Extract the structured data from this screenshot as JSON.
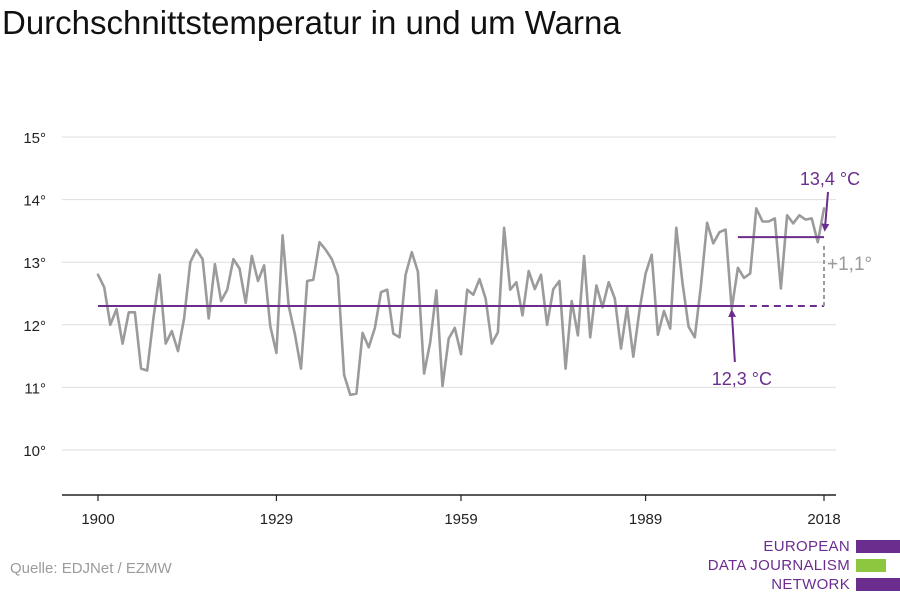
{
  "title": "Durchschnittstemperatur in und um Warna",
  "source": "Quelle: EDJNet / EZMW",
  "logo": {
    "lines": [
      "EUROPEAN",
      "DATA JOURNALISM",
      "NETWORK"
    ],
    "colors": [
      "#6b2d8e",
      "#8dc63f",
      "#6b2d8e"
    ]
  },
  "chart_data": {
    "type": "line",
    "title": "Durchschnittstemperatur in und um Warna",
    "xlabel": "",
    "ylabel": "",
    "xlim": [
      1900,
      2018
    ],
    "ylim": [
      9.3,
      15.3
    ],
    "x_ticks": [
      1900,
      1929,
      1959,
      1989,
      2018
    ],
    "x_tick_labels": [
      "1900",
      "1929",
      "1959",
      "1989",
      "2018"
    ],
    "y_ticks": [
      10,
      11,
      12,
      13,
      14,
      15
    ],
    "y_tick_labels": [
      "10°",
      "11°",
      "12°",
      "13°",
      "14°",
      "15°"
    ],
    "grid": "horizontal",
    "colors": {
      "series": "#9b9b9b",
      "reference": "#6b2d8e",
      "delta": "#9b9b9b"
    },
    "series": [
      {
        "x": [
          1900,
          1901,
          1902,
          1903,
          1904,
          1905,
          1906,
          1907,
          1908,
          1909,
          1910,
          1911,
          1912,
          1913,
          1914,
          1915,
          1916,
          1917,
          1918,
          1919,
          1920,
          1921,
          1922,
          1923,
          1924,
          1925,
          1926,
          1927,
          1928,
          1929,
          1930,
          1931,
          1932,
          1933,
          1934,
          1935,
          1936,
          1937,
          1938,
          1939,
          1940,
          1941,
          1942,
          1943,
          1944,
          1945,
          1946,
          1947,
          1948,
          1949,
          1950,
          1951,
          1952,
          1953,
          1954,
          1955,
          1956,
          1957,
          1958,
          1959,
          1960,
          1961,
          1962,
          1963,
          1964,
          1965,
          1966,
          1967,
          1968,
          1969,
          1970,
          1971,
          1972,
          1973,
          1974,
          1975,
          1976,
          1977,
          1978,
          1979,
          1980,
          1981,
          1982,
          1983,
          1984,
          1985,
          1986,
          1987,
          1988,
          1989,
          1990,
          1991,
          1992,
          1993,
          1994,
          1995,
          1996,
          1997,
          1998,
          1999,
          2000,
          2001,
          2002,
          2003,
          2004,
          2005,
          2006,
          2007,
          2008,
          2009,
          2010,
          2011,
          2012,
          2013,
          2014,
          2015,
          2016,
          2017,
          2018
        ],
        "values": [
          12.8,
          12.6,
          12.0,
          12.25,
          11.7,
          12.2,
          12.2,
          11.3,
          11.27,
          12.1,
          12.8,
          11.7,
          11.9,
          11.58,
          12.1,
          13.0,
          13.2,
          13.05,
          12.1,
          12.97,
          12.38,
          12.56,
          13.05,
          12.9,
          12.35,
          13.1,
          12.7,
          12.95,
          11.98,
          11.55,
          13.43,
          12.3,
          11.85,
          11.3,
          12.7,
          12.72,
          13.32,
          13.2,
          13.05,
          12.78,
          11.2,
          10.88,
          10.9,
          11.87,
          11.64,
          11.95,
          12.52,
          12.56,
          11.86,
          11.8,
          12.8,
          13.16,
          12.85,
          11.22,
          11.72,
          12.55,
          11.02,
          11.78,
          11.95,
          11.53,
          12.56,
          12.48,
          12.73,
          12.42,
          11.7,
          11.88,
          13.55,
          12.56,
          12.68,
          12.15,
          12.86,
          12.57,
          12.8,
          12.0,
          12.57,
          12.7,
          11.3,
          12.38,
          11.83,
          13.1,
          11.8,
          12.63,
          12.28,
          12.68,
          12.42,
          11.62,
          12.28,
          11.49,
          12.22,
          12.82,
          13.12,
          11.84,
          12.22,
          11.94,
          13.55,
          12.67,
          11.97,
          11.8,
          12.62,
          13.63,
          13.3,
          13.48,
          13.52,
          12.25,
          12.91,
          12.75,
          12.82,
          13.86,
          13.65,
          13.65,
          13.7,
          12.58,
          13.75,
          13.62,
          13.75,
          13.68,
          13.7,
          13.32,
          13.86
        ]
      }
    ],
    "reference_lines": [
      {
        "label": "12,3 °C",
        "value": 12.3,
        "x_start": 1900,
        "x_end": 2004,
        "dashed_x_end": 2018
      },
      {
        "label": "13,4 °C",
        "value": 13.4,
        "x_start": 2004,
        "x_end": 2018
      }
    ],
    "delta_label": "+1,1°"
  }
}
